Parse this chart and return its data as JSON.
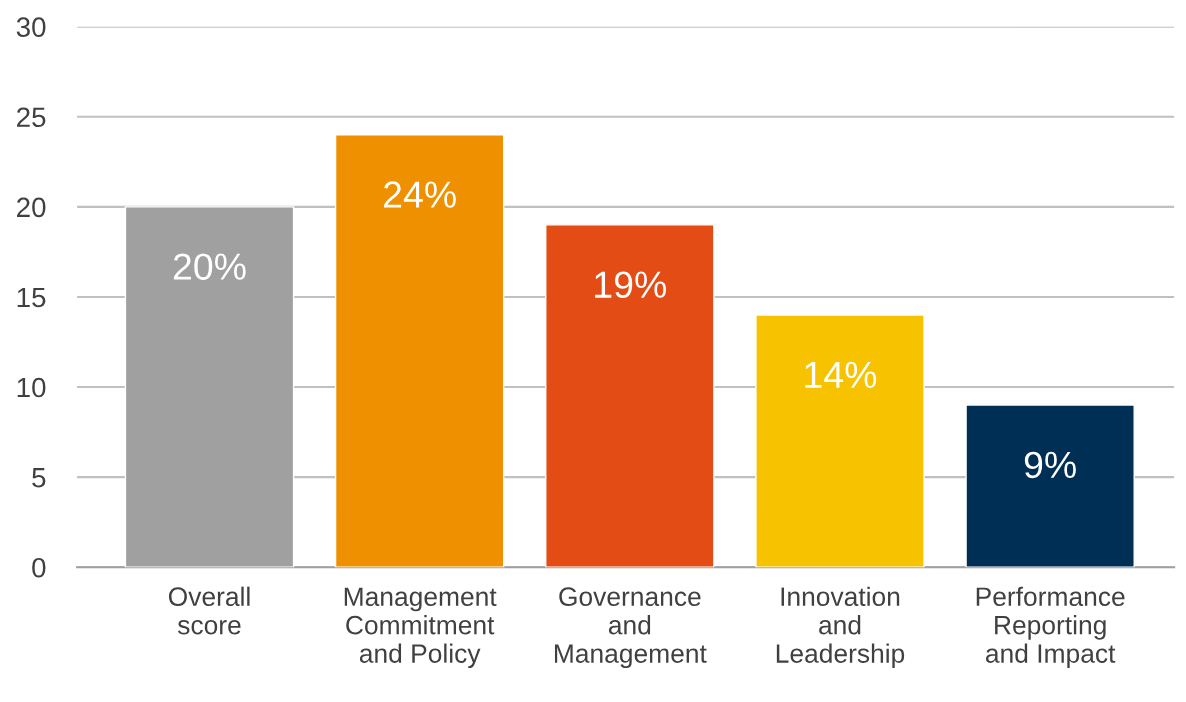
{
  "chart_data": {
    "type": "bar",
    "categories": [
      "Overall\nscore",
      "Management\nCommitment\nand Policy",
      "Governance\nand\nManagement",
      "Innovation\nand\nLeadership",
      "Performance\nReporting\nand Impact"
    ],
    "values": [
      20,
      24,
      19,
      14,
      9
    ],
    "colors": [
      "#a0a0a0",
      "#ee9000",
      "#e34c15",
      "#f7c300",
      "#002f56"
    ],
    "value_labels": [
      "20%",
      "24%",
      "19%",
      "14%",
      "9%"
    ],
    "ylim": [
      0,
      30
    ],
    "yticks": [
      0,
      5,
      10,
      15,
      20,
      25,
      30
    ],
    "grid": "y",
    "legend": false
  }
}
